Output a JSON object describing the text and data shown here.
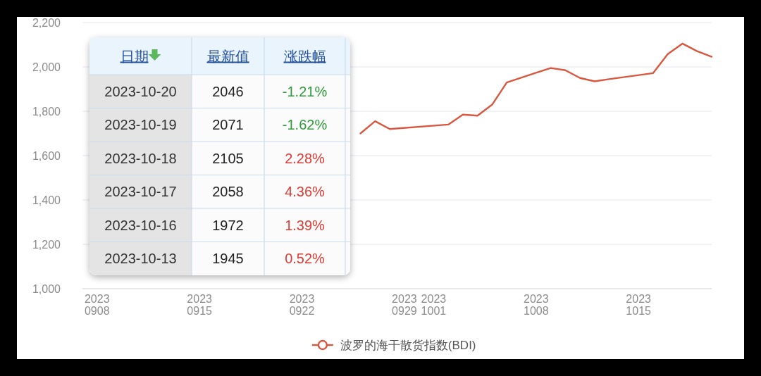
{
  "chart_data": [
    {
      "type": "line",
      "x": [
        "2023-09-26",
        "2023-09-27",
        "2023-09-28",
        "2023-10-02",
        "2023-10-03",
        "2023-10-04",
        "2023-10-05",
        "2023-10-06",
        "2023-10-09",
        "2023-10-10",
        "2023-10-11",
        "2023-10-12",
        "2023-10-13",
        "2023-10-16",
        "2023-10-17",
        "2023-10-18",
        "2023-10-19",
        "2023-10-20"
      ],
      "series": [
        {
          "name": "波罗的海干散货指数(BDI)",
          "color": "#d9573f",
          "values": [
            1700,
            1755,
            1720,
            1740,
            1785,
            1780,
            1830,
            1930,
            1995,
            1985,
            1950,
            1935,
            1945,
            1972,
            2058,
            2105,
            2071,
            2046
          ]
        }
      ],
      "xlim": [
        "2023-09-07",
        "2023-10-20"
      ],
      "xticks": [
        {
          "value": "2023-09-08",
          "label": "20230908"
        },
        {
          "value": "2023-09-15",
          "label": "20230915"
        },
        {
          "value": "2023-09-22",
          "label": "20230922"
        },
        {
          "value": "2023-09-29",
          "label": "20230929"
        },
        {
          "value": "2023-10-01",
          "label": "20231001"
        },
        {
          "value": "2023-10-08",
          "label": "20231008"
        },
        {
          "value": "2023-10-15",
          "label": "20231015"
        }
      ],
      "ylim": [
        1000,
        2200
      ],
      "yticks": [
        {
          "value": 1000,
          "label": "1,000"
        },
        {
          "value": 1200,
          "label": "1,200"
        },
        {
          "value": 1400,
          "label": "1,400"
        },
        {
          "value": 1600,
          "label": "1,600"
        },
        {
          "value": 1800,
          "label": "1,800"
        },
        {
          "value": 2000,
          "label": "2,000"
        },
        {
          "value": 2200,
          "label": "2,200"
        }
      ],
      "grid": "y",
      "legend": "bottom"
    },
    {
      "type": "other",
      "xlabel": "日期",
      "categories": [
        "2023-10-20",
        "2023-10-19",
        "2023-10-18",
        "2023-10-17",
        "2023-10-16",
        "2023-10-13"
      ],
      "series": [
        {
          "name": "最新值",
          "values": [
            2046,
            2071,
            2105,
            2058,
            1972,
            1945
          ],
          "value_labels": [
            "2046",
            "2071",
            "2105",
            "2058",
            "1972",
            "1945"
          ]
        },
        {
          "name": "涨跌幅",
          "values": [
            -1.21,
            -1.62,
            2.28,
            4.36,
            1.39,
            0.52
          ],
          "value_labels": [
            "-1.21%",
            "-1.62%",
            "2.28%",
            "4.36%",
            "1.39%",
            "0.52%"
          ],
          "colors": [
            "#2e9a3a",
            "#2e9a3a",
            "#e03a34",
            "#e03a34",
            "#e03a34",
            "#e03a34"
          ]
        }
      ]
    }
  ]
}
